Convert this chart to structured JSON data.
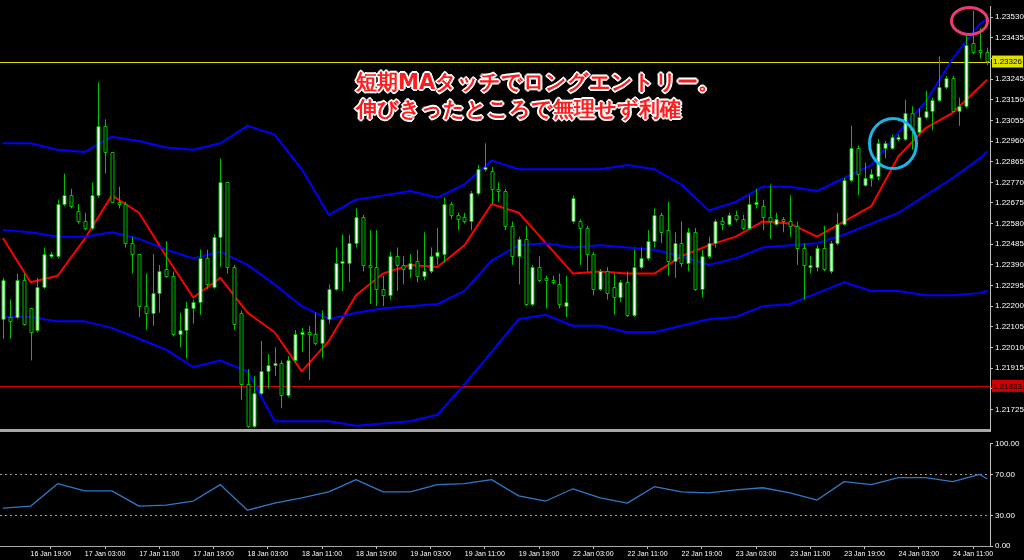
{
  "chart_data": [
    {
      "type": "candlestick",
      "color": "#00c000",
      "categories": [
        null,
        null,
        null,
        null,
        null,
        null,
        null,
        null,
        null,
        null,
        null,
        null,
        null,
        null,
        null,
        null,
        null,
        null,
        null,
        null,
        null,
        null,
        null,
        null,
        null,
        null,
        null,
        null,
        null,
        null,
        null,
        null,
        null,
        null,
        null,
        null,
        null,
        null,
        null,
        null,
        null,
        null,
        null,
        null,
        null,
        null,
        null,
        null,
        null,
        null,
        null,
        null,
        null,
        null,
        null,
        null,
        null,
        null,
        null,
        null,
        null,
        null,
        null,
        null,
        null,
        null,
        null,
        null,
        null,
        null,
        null,
        null,
        null,
        null,
        null,
        null,
        null,
        null,
        null,
        null,
        null,
        null,
        null,
        null,
        null,
        null,
        null,
        null,
        null,
        null,
        null,
        null,
        null,
        null,
        null,
        null,
        null,
        null,
        null,
        null,
        null,
        null,
        null,
        null,
        null,
        null,
        null,
        null,
        null,
        null,
        null,
        null,
        null,
        null,
        null,
        null,
        null,
        null,
        null,
        null,
        null,
        null,
        null,
        null,
        null,
        null,
        null,
        null,
        null,
        null,
        null,
        null,
        null,
        null,
        null,
        null,
        null,
        null,
        null,
        null,
        null,
        null,
        null,
        null,
        null,
        null
      ],
      "ohlc": [
        [
          1.2214,
          1.2233,
          1.2205,
          1.2232
        ],
        [
          1.2215,
          1.2223,
          1.2205,
          1.2213
        ],
        [
          1.2215,
          1.2235,
          1.2214,
          1.2232
        ],
        [
          1.2232,
          1.2235,
          1.2211,
          1.2212
        ],
        [
          1.2219,
          1.2219,
          1.2195,
          1.2208
        ],
        [
          1.2209,
          1.2233,
          1.2208,
          1.2229
        ],
        [
          1.2229,
          1.2247,
          1.2228,
          1.2244
        ],
        [
          1.2243,
          1.2245,
          1.2242,
          1.2244
        ],
        [
          1.2243,
          1.2269,
          1.2242,
          1.2267
        ],
        [
          1.2267,
          1.2281,
          1.2266,
          1.2271
        ],
        [
          1.2271,
          1.2274,
          1.2265,
          1.2266
        ],
        [
          1.2264,
          1.2267,
          1.2258,
          1.2259
        ],
        [
          1.2259,
          1.2263,
          1.2255,
          1.2256
        ],
        [
          1.2256,
          1.2277,
          1.2255,
          1.2271
        ],
        [
          1.2271,
          1.2323,
          1.227,
          1.2303
        ],
        [
          1.2303,
          1.2306,
          1.2281,
          1.2291
        ],
        [
          1.2291,
          1.2291,
          1.2268,
          1.2268
        ],
        [
          1.2268,
          1.2275,
          1.2265,
          1.2267
        ],
        [
          1.2267,
          1.2268,
          1.2247,
          1.2249
        ],
        [
          1.2249,
          1.2252,
          1.2235,
          1.2244
        ],
        [
          1.2244,
          1.2244,
          1.2215,
          1.222
        ],
        [
          1.222,
          1.2235,
          1.2209,
          1.2217
        ],
        [
          1.2217,
          1.2244,
          1.2211,
          1.2226
        ],
        [
          1.2226,
          1.2239,
          1.2217,
          1.2236
        ],
        [
          1.2237,
          1.225,
          1.2233,
          1.2234
        ],
        [
          1.2234,
          1.2236,
          1.2206,
          1.2207
        ],
        [
          1.2207,
          1.2217,
          1.2201,
          1.2209
        ],
        [
          1.2209,
          1.2222,
          1.2196,
          1.2219
        ],
        [
          1.2219,
          1.2223,
          1.2212,
          1.2222
        ],
        [
          1.2222,
          1.2246,
          1.2216,
          1.2242
        ],
        [
          1.2242,
          1.2246,
          1.2228,
          1.223
        ],
        [
          1.2229,
          1.2253,
          1.2228,
          1.2252
        ],
        [
          1.2252,
          1.2288,
          1.2238,
          1.2277
        ],
        [
          1.2277,
          1.2277,
          1.2235,
          1.2238
        ],
        [
          1.2238,
          1.2239,
          1.2209,
          1.2212
        ],
        [
          1.2217,
          1.2218,
          1.2177,
          1.2184
        ],
        [
          1.2184,
          1.2191,
          1.2164,
          1.2165
        ],
        [
          1.2165,
          1.2188,
          1.2164,
          1.218
        ],
        [
          1.218,
          1.2204,
          1.2179,
          1.219
        ],
        [
          1.219,
          1.2198,
          1.2182,
          1.2193
        ],
        [
          1.2193,
          1.2201,
          1.2188,
          1.2194
        ],
        [
          1.2194,
          1.2195,
          1.2173,
          1.2179
        ],
        [
          1.2179,
          1.2197,
          1.2178,
          1.2195
        ],
        [
          1.2195,
          1.2209,
          1.2194,
          1.2207
        ],
        [
          1.2207,
          1.221,
          1.2199,
          1.2208
        ],
        [
          1.2208,
          1.2211,
          1.2186,
          1.2207
        ],
        [
          1.2207,
          1.2217,
          1.2202,
          1.2203
        ],
        [
          1.2203,
          1.2218,
          1.2196,
          1.2214
        ],
        [
          1.2214,
          1.223,
          1.2212,
          1.2228
        ],
        [
          1.2228,
          1.2247,
          1.2227,
          1.224
        ],
        [
          1.224,
          1.2253,
          1.2227,
          1.2241
        ],
        [
          1.224,
          1.2253,
          1.2231,
          1.2249
        ],
        [
          1.2249,
          1.2265,
          1.2247,
          1.2261
        ],
        [
          1.2261,
          1.2262,
          1.2236,
          1.2239
        ],
        [
          1.2239,
          1.2255,
          1.2221,
          1.2238
        ],
        [
          1.2238,
          1.2255,
          1.222,
          1.2228
        ],
        [
          1.2228,
          1.2234,
          1.222,
          1.2225
        ],
        [
          1.2225,
          1.2245,
          1.2223,
          1.2243
        ],
        [
          1.2243,
          1.2247,
          1.2227,
          1.2239
        ],
        [
          1.2239,
          1.2243,
          1.223,
          1.2237
        ],
        [
          1.2237,
          1.2244,
          1.2233,
          1.224
        ],
        [
          1.2241,
          1.2246,
          1.2231,
          1.2234
        ],
        [
          1.2234,
          1.2254,
          1.2232,
          1.2236
        ],
        [
          1.2236,
          1.2247,
          1.2235,
          1.2243
        ],
        [
          1.2243,
          1.2256,
          1.2239,
          1.2245
        ],
        [
          1.2244,
          1.227,
          1.224,
          1.2267
        ],
        [
          1.2267,
          1.2268,
          1.226,
          1.2262
        ],
        [
          1.2262,
          1.2263,
          1.2255,
          1.226
        ],
        [
          1.2261,
          1.2263,
          1.2258,
          1.2259
        ],
        [
          1.2259,
          1.2273,
          1.2255,
          1.2272
        ],
        [
          1.2272,
          1.2285,
          1.2271,
          1.2283
        ],
        [
          1.2283,
          1.2295,
          1.2282,
          1.2284
        ],
        [
          1.2282,
          1.2284,
          1.2267,
          1.2274
        ],
        [
          1.2274,
          1.2277,
          1.2268,
          1.2273
        ],
        [
          1.2273,
          1.2274,
          1.2255,
          1.2257
        ],
        [
          1.2257,
          1.2259,
          1.2239,
          1.2243
        ],
        [
          1.2243,
          1.2252,
          1.223,
          1.2251
        ],
        [
          1.2251,
          1.2257,
          1.222,
          1.2221
        ],
        [
          1.2221,
          1.2239,
          1.222,
          1.2238
        ],
        [
          1.2238,
          1.2243,
          1.2231,
          1.2232
        ],
        [
          1.2233,
          1.2234,
          1.2219,
          1.2232
        ],
        [
          1.2232,
          1.2234,
          1.223,
          1.2231
        ],
        [
          1.223,
          1.2235,
          1.2219,
          1.2221
        ],
        [
          1.222,
          1.2234,
          1.2215,
          1.2222
        ],
        [
          1.2259,
          1.2271,
          1.2258,
          1.227
        ],
        [
          1.2259,
          1.226,
          1.2239,
          1.2256
        ],
        [
          1.2256,
          1.2257,
          1.2236,
          1.2244
        ],
        [
          1.2244,
          1.2245,
          1.2225,
          1.2228
        ],
        [
          1.2228,
          1.2237,
          1.2227,
          1.2236
        ],
        [
          1.2236,
          1.2238,
          1.2223,
          1.2226
        ],
        [
          1.2229,
          1.2235,
          1.2216,
          1.2224
        ],
        [
          1.2224,
          1.2232,
          1.2222,
          1.2231
        ],
        [
          1.2231,
          1.2236,
          1.2215,
          1.2216
        ],
        [
          1.2216,
          1.2246,
          1.2215,
          1.2238
        ],
        [
          1.2238,
          1.2247,
          1.2237,
          1.2242
        ],
        [
          1.2242,
          1.2255,
          1.2241,
          1.225
        ],
        [
          1.225,
          1.2265,
          1.2247,
          1.2262
        ],
        [
          1.2262,
          1.2263,
          1.2249,
          1.2254
        ],
        [
          1.2255,
          1.2268,
          1.2234,
          1.2241
        ],
        [
          1.2241,
          1.2254,
          1.2233,
          1.2249
        ],
        [
          1.2249,
          1.2259,
          1.2238,
          1.224
        ],
        [
          1.224,
          1.2256,
          1.2236,
          1.2254
        ],
        [
          1.2254,
          1.2256,
          1.2227,
          1.2228
        ],
        [
          1.2228,
          1.2246,
          1.2224,
          1.2243
        ],
        [
          1.2243,
          1.2252,
          1.2242,
          1.2249
        ],
        [
          1.2249,
          1.226,
          1.2247,
          1.2259
        ],
        [
          1.2259,
          1.2261,
          1.2255,
          1.2258
        ],
        [
          1.2258,
          1.2263,
          1.2257,
          1.2262
        ],
        [
          1.2262,
          1.2264,
          1.2259,
          1.226
        ],
        [
          1.226,
          1.2262,
          1.2255,
          1.2256
        ],
        [
          1.2256,
          1.2271,
          1.2255,
          1.2267
        ],
        [
          1.2267,
          1.2274,
          1.2265,
          1.2268
        ],
        [
          1.2266,
          1.2269,
          1.2255,
          1.2261
        ],
        [
          1.2261,
          1.2276,
          1.2251,
          1.2259
        ],
        [
          1.2258,
          1.2263,
          1.2257,
          1.226
        ],
        [
          1.226,
          1.2261,
          1.2254,
          1.2259
        ],
        [
          1.2259,
          1.2271,
          1.2252,
          1.2257
        ],
        [
          1.2257,
          1.2259,
          1.2239,
          1.2247
        ],
        [
          1.2247,
          1.2249,
          1.2223,
          1.2239
        ],
        [
          1.2238,
          1.2243,
          1.2235,
          1.2239
        ],
        [
          1.2238,
          1.2248,
          1.2236,
          1.2247
        ],
        [
          1.2247,
          1.2257,
          1.2236,
          1.2237
        ],
        [
          1.2236,
          1.225,
          1.2235,
          1.2249
        ],
        [
          1.2249,
          1.2263,
          1.2248,
          1.2258
        ],
        [
          1.2258,
          1.2279,
          1.2257,
          1.2278
        ],
        [
          1.2278,
          1.2303,
          1.2277,
          1.2293
        ],
        [
          1.2293,
          1.2294,
          1.2271,
          1.2281
        ],
        [
          1.2276,
          1.2286,
          1.2275,
          1.2279
        ],
        [
          1.2279,
          1.2283,
          1.2275,
          1.2281
        ],
        [
          1.228,
          1.2297,
          1.2278,
          1.2295
        ],
        [
          1.2293,
          1.2296,
          1.2288,
          1.2295
        ],
        [
          1.2293,
          1.2299,
          1.2292,
          1.2298
        ],
        [
          1.2297,
          1.2299,
          1.2296,
          1.2298
        ],
        [
          1.2297,
          1.2315,
          1.2296,
          1.2309
        ],
        [
          1.2309,
          1.2312,
          1.2292,
          1.2301
        ],
        [
          1.23,
          1.2311,
          1.2299,
          1.2307
        ],
        [
          1.2307,
          1.2319,
          1.2306,
          1.231
        ],
        [
          1.231,
          1.2316,
          1.2301,
          1.2315
        ],
        [
          1.2315,
          1.2335,
          1.2314,
          1.2321
        ],
        [
          1.2321,
          1.2326,
          1.232,
          1.2325
        ],
        [
          1.2325,
          1.2326,
          1.2309,
          1.231
        ],
        [
          1.231,
          1.2316,
          1.2303,
          1.2312
        ],
        [
          1.2312,
          1.2345,
          1.2311,
          1.234
        ],
        [
          1.2341,
          1.2356,
          1.2336,
          1.2337
        ],
        [
          1.2338,
          1.2348,
          1.2334,
          1.2337
        ],
        [
          1.2337,
          1.2339,
          1.2331,
          1.2333
        ]
      ],
      "series": [
        {
          "type": "line",
          "color": "#0000ff",
          "values": [
            1.2295,
            null,
            null,
            null,
            1.2295,
            null,
            null,
            null,
            1.2292,
            null,
            null,
            null,
            1.2291,
            null,
            null,
            null,
            1.2298,
            null,
            null,
            null,
            1.2296,
            null,
            null,
            null,
            1.2293,
            null,
            null,
            null,
            1.2292,
            null,
            null,
            null,
            1.2295,
            null,
            null,
            null,
            1.2303,
            null,
            null,
            null,
            1.2299,
            null,
            null,
            null,
            1.2283,
            null,
            null,
            null,
            1.2262,
            null,
            null,
            null,
            1.2269,
            null,
            null,
            null,
            1.2271,
            null,
            null,
            null,
            1.2273,
            null,
            null,
            null,
            1.227,
            null,
            null,
            null,
            1.2276,
            null,
            null,
            null,
            1.2287,
            null,
            null,
            null,
            1.2283,
            null,
            null,
            null,
            1.2283,
            null,
            null,
            null,
            1.2283,
            null,
            null,
            null,
            1.2283,
            null,
            null,
            null,
            1.2285,
            null,
            null,
            null,
            1.2283,
            null,
            null,
            null,
            1.2276,
            null,
            null,
            null,
            1.2264,
            null,
            null,
            null,
            1.2268,
            null,
            null,
            null,
            1.2275,
            null,
            null,
            null,
            1.2275,
            null,
            null,
            null,
            1.2273,
            null,
            null,
            null,
            1.2279,
            null,
            null,
            null,
            1.2285,
            null,
            null,
            null,
            1.23,
            null,
            null,
            null,
            1.2314,
            null,
            null,
            null,
            1.2334,
            null,
            null,
            null,
            1.235,
            1.2352
          ]
        },
        {
          "type": "line",
          "color": "#0000ff",
          "values": [
            1.2255,
            null,
            null,
            null,
            1.2254,
            null,
            null,
            null,
            1.2252,
            null,
            null,
            null,
            1.2252,
            null,
            null,
            null,
            1.2254,
            null,
            null,
            null,
            1.2251,
            null,
            null,
            null,
            1.2246,
            null,
            null,
            null,
            1.2242,
            null,
            null,
            null,
            1.2245,
            null,
            null,
            null,
            1.2239,
            null,
            null,
            null,
            1.223,
            null,
            null,
            null,
            1.222,
            null,
            null,
            null,
            1.2214,
            null,
            null,
            null,
            1.2217,
            null,
            null,
            null,
            1.2219,
            null,
            null,
            null,
            1.222,
            null,
            null,
            null,
            1.2221,
            null,
            null,
            null,
            1.2227,
            null,
            null,
            null,
            1.2241,
            null,
            null,
            null,
            1.2248,
            null,
            null,
            null,
            1.2249,
            null,
            null,
            null,
            1.2247,
            null,
            null,
            null,
            1.2248,
            null,
            null,
            null,
            1.2247,
            null,
            null,
            null,
            1.2246,
            null,
            null,
            null,
            1.2243,
            null,
            null,
            null,
            1.2239,
            null,
            null,
            null,
            1.2242,
            null,
            null,
            null,
            1.2247,
            null,
            null,
            null,
            1.2248,
            null,
            null,
            null,
            1.2249,
            null,
            null,
            null,
            1.2253,
            null,
            null,
            null,
            1.2258,
            null,
            null,
            null,
            1.2263,
            null,
            null,
            null,
            1.2271,
            null,
            null,
            null,
            1.2279,
            null,
            null,
            null,
            1.2288,
            1.2291
          ]
        },
        {
          "type": "line",
          "color": "#0000ff",
          "values": [
            1.2215,
            null,
            null,
            null,
            1.2215,
            null,
            null,
            null,
            1.2213,
            null,
            null,
            null,
            1.2213,
            null,
            null,
            null,
            1.221,
            null,
            null,
            null,
            1.2205,
            null,
            null,
            null,
            1.22,
            null,
            null,
            null,
            1.2192,
            null,
            null,
            null,
            1.2195,
            null,
            null,
            null,
            1.219,
            null,
            null,
            null,
            1.2167,
            null,
            null,
            null,
            null,
            null,
            null,
            null,
            1.2167,
            null,
            null,
            null,
            1.2165,
            null,
            null,
            null,
            1.2166,
            null,
            null,
            null,
            1.2167,
            null,
            null,
            null,
            1.217,
            null,
            null,
            null,
            1.2184,
            null,
            null,
            null,
            1.2199,
            null,
            null,
            null,
            1.2214,
            null,
            null,
            null,
            1.2216,
            null,
            null,
            null,
            1.2211,
            null,
            null,
            null,
            1.2211,
            null,
            null,
            null,
            1.2208,
            null,
            null,
            null,
            1.2208,
            null,
            null,
            null,
            1.2211,
            null,
            null,
            null,
            1.2214,
            null,
            null,
            null,
            1.2215,
            null,
            null,
            null,
            1.222,
            null,
            null,
            null,
            1.2221,
            null,
            null,
            null,
            1.2226,
            null,
            null,
            null,
            1.2231,
            null,
            null,
            null,
            1.2227,
            null,
            null,
            null,
            1.2227,
            null,
            null,
            null,
            1.2225,
            null,
            null,
            null,
            1.2225,
            null,
            null,
            null,
            1.2226,
            1.2227
          ]
        },
        {
          "type": "line",
          "color": "#ff0000",
          "values": [
            1.2251,
            null,
            null,
            null,
            1.2231,
            null,
            null,
            null,
            1.2234,
            null,
            null,
            null,
            1.2251,
            null,
            null,
            null,
            1.2271,
            null,
            null,
            null,
            1.2263,
            null,
            null,
            null,
            1.2243,
            null,
            null,
            null,
            1.2224,
            null,
            null,
            null,
            1.2233,
            null,
            null,
            null,
            1.2217,
            null,
            null,
            null,
            1.2208,
            null,
            null,
            null,
            1.219,
            null,
            null,
            null,
            1.2204,
            null,
            null,
            null,
            1.2225,
            null,
            null,
            null,
            1.2235,
            null,
            null,
            null,
            1.2239,
            null,
            null,
            null,
            1.2238,
            null,
            null,
            null,
            1.2248,
            null,
            null,
            null,
            1.2267,
            null,
            null,
            null,
            1.2263,
            null,
            null,
            null,
            1.2249,
            null,
            null,
            null,
            1.2235,
            null,
            null,
            null,
            1.2236,
            null,
            null,
            null,
            1.2235,
            null,
            null,
            null,
            1.2235,
            null,
            null,
            null,
            1.2243,
            null,
            null,
            null,
            1.2248,
            null,
            null,
            null,
            1.2252,
            null,
            null,
            null,
            1.2259,
            null,
            null,
            null,
            1.2258,
            null,
            null,
            null,
            1.2252,
            null,
            null,
            null,
            1.2259,
            null,
            null,
            null,
            1.2266,
            null,
            null,
            null,
            1.2289,
            null,
            null,
            null,
            1.2302,
            null,
            null,
            null,
            1.2309,
            null,
            null,
            null,
            1.2321,
            1.2324
          ]
        }
      ],
      "ylim": [
        1.21629,
        1.23578
      ],
      "yticks": [
        {
          "value": 1.21725,
          "label": "1.21725"
        },
        {
          "value": 1.2182,
          "label": null
        },
        {
          "value": 1.21915,
          "label": "1.21915"
        },
        {
          "value": 1.2201,
          "label": "1.22010"
        },
        {
          "value": 1.22105,
          "label": "1.22105"
        },
        {
          "value": 1.222,
          "label": "1.22200"
        },
        {
          "value": 1.22295,
          "label": "1.22295"
        },
        {
          "value": 1.2239,
          "label": "1.22390"
        },
        {
          "value": 1.22485,
          "label": "1.22485"
        },
        {
          "value": 1.2258,
          "label": "1.22580"
        },
        {
          "value": 1.22675,
          "label": "1.22675"
        },
        {
          "value": 1.2277,
          "label": "1.22770"
        },
        {
          "value": 1.22865,
          "label": "1.22865"
        },
        {
          "value": 1.2296,
          "label": "1.22960"
        },
        {
          "value": 1.23055,
          "label": "1.23055"
        },
        {
          "value": 1.2315,
          "label": "1.23150"
        },
        {
          "value": 1.23245,
          "label": "1.23245"
        },
        {
          "value": 1.2334,
          "label": null
        },
        {
          "value": 1.23435,
          "label": "1.23435"
        },
        {
          "value": 1.2353,
          "label": "1.23530"
        }
      ],
      "ref_lines": [
        {
          "axis": "y",
          "value": 1.23326,
          "label": "1.23326",
          "color": "#e0e000"
        },
        {
          "axis": "y",
          "value": 1.21833,
          "label": "1.21833",
          "color": "#d00000"
        }
      ],
      "annotations": [
        "短期MAタッチでロングエントリー。",
        "伸びきったところで無理せず利確"
      ],
      "tick_labels": "y"
    },
    {
      "type": "line",
      "color": "#2f78c8",
      "categories": [
        null,
        null,
        null,
        null,
        null,
        null,
        null,
        "16 Jan 19:00",
        null,
        null,
        null,
        null,
        null,
        null,
        null,
        "17 Jan 03:00",
        null,
        null,
        null,
        null,
        null,
        null,
        null,
        "17 Jan 11:00",
        null,
        null,
        null,
        null,
        null,
        null,
        null,
        "17 Jan 19:00",
        null,
        null,
        null,
        null,
        null,
        null,
        null,
        "18 Jan 03:00",
        null,
        null,
        null,
        null,
        null,
        null,
        null,
        "18 Jan 11:00",
        null,
        null,
        null,
        null,
        null,
        null,
        null,
        "18 Jan 19:00",
        null,
        null,
        null,
        null,
        null,
        null,
        null,
        "19 Jan 03:00",
        null,
        null,
        null,
        null,
        null,
        null,
        null,
        "19 Jan 11:00",
        null,
        null,
        null,
        null,
        null,
        null,
        null,
        "19 Jan 19:00",
        null,
        null,
        null,
        null,
        null,
        null,
        null,
        "22 Jan 03:00",
        null,
        null,
        null,
        null,
        null,
        null,
        null,
        "22 Jan 11:00",
        null,
        null,
        null,
        null,
        null,
        null,
        null,
        "22 Jan 19:00",
        null,
        null,
        null,
        null,
        null,
        null,
        null,
        "23 Jan 03:00",
        null,
        null,
        null,
        null,
        null,
        null,
        null,
        "23 Jan 11:00",
        null,
        null,
        null,
        null,
        null,
        null,
        null,
        "23 Jan 19:00",
        null,
        null,
        null,
        null,
        null,
        null,
        null,
        "24 Jan 03:00",
        null,
        null,
        null,
        null,
        null,
        null,
        null,
        "24 Jan 11:00",
        null,
        null
      ],
      "values": [
        37,
        null,
        null,
        null,
        39,
        null,
        null,
        null,
        61,
        null,
        null,
        null,
        54,
        null,
        null,
        null,
        54,
        null,
        null,
        null,
        39,
        null,
        null,
        null,
        40,
        null,
        null,
        null,
        44,
        null,
        null,
        null,
        60,
        null,
        null,
        null,
        35,
        null,
        null,
        null,
        42,
        null,
        null,
        null,
        47,
        null,
        null,
        null,
        53,
        null,
        null,
        null,
        65,
        null,
        null,
        null,
        53,
        null,
        null,
        null,
        53,
        null,
        null,
        null,
        60,
        null,
        null,
        null,
        61,
        null,
        null,
        null,
        65,
        null,
        null,
        null,
        49,
        null,
        null,
        null,
        44,
        null,
        null,
        null,
        56,
        null,
        null,
        null,
        47,
        null,
        null,
        null,
        42,
        null,
        null,
        null,
        58,
        null,
        null,
        null,
        53,
        null,
        null,
        null,
        52,
        null,
        null,
        null,
        55,
        null,
        null,
        null,
        57,
        null,
        null,
        null,
        52,
        null,
        null,
        null,
        45,
        null,
        null,
        null,
        63,
        null,
        null,
        null,
        60,
        null,
        null,
        null,
        67,
        null,
        null,
        null,
        67,
        null,
        null,
        null,
        63,
        null,
        null,
        null,
        70,
        66
      ],
      "ylim": [
        0,
        100
      ],
      "yticks": [
        {
          "value": 0,
          "label": "0.00"
        },
        {
          "value": 30,
          "label": "30.00"
        },
        {
          "value": 70,
          "label": "70.00"
        },
        {
          "value": 100,
          "label": "100.00"
        }
      ],
      "ref_lines": [
        {
          "axis": "y",
          "value": 70,
          "color": "#a0a0a0",
          "line_style": "dotted"
        },
        {
          "axis": "y",
          "value": 30,
          "color": "#a0a0a0",
          "line_style": "dotted"
        }
      ]
    }
  ]
}
